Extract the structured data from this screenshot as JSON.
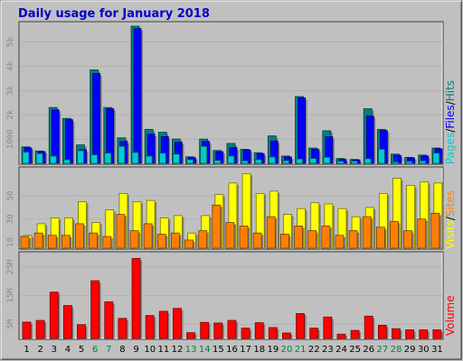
{
  "title": "Daily usage for January 2018",
  "colors": {
    "title": "#0000cc",
    "pages": "#00cccc",
    "files": "#0000ff",
    "hits": "#008080",
    "visits": "#ffff00",
    "sites": "#ff8000",
    "volume": "#ff0000",
    "weekend_label": "#008040",
    "weekday_label": "#000000",
    "panel_bg": "#c0c0c0"
  },
  "side_labels": {
    "pages": "Pages",
    "files": "Files",
    "hits": "Hits",
    "visits": "Visits",
    "sites": "Sites",
    "volume": "Volume",
    "separator": "/"
  },
  "chart_data": [
    {
      "type": "bar",
      "panel": "hits-files-pages",
      "categories": [
        "1",
        "2",
        "3",
        "4",
        "5",
        "6",
        "7",
        "8",
        "9",
        "10",
        "11",
        "12",
        "13",
        "14",
        "15",
        "16",
        "17",
        "18",
        "19",
        "20",
        "21",
        "22",
        "23",
        "24",
        "25",
        "26",
        "27",
        "28",
        "29",
        "30",
        "31"
      ],
      "weekend_days": [
        "6",
        "7",
        "13",
        "14",
        "20",
        "21",
        "27",
        "28"
      ],
      "series": [
        {
          "name": "Hits",
          "values": [
            680,
            510,
            2300,
            1850,
            760,
            3850,
            2300,
            1050,
            5650,
            1400,
            1280,
            1000,
            270,
            1000,
            530,
            820,
            580,
            440,
            1130,
            300,
            2750,
            630,
            1340,
            200,
            160,
            2250,
            1400,
            380,
            250,
            340,
            630
          ]
        },
        {
          "name": "Files",
          "values": [
            640,
            480,
            2200,
            1800,
            560,
            3700,
            2250,
            900,
            5550,
            1200,
            1100,
            870,
            230,
            900,
            480,
            650,
            550,
            400,
            920,
            260,
            2700,
            580,
            1100,
            160,
            140,
            1950,
            1350,
            330,
            220,
            300,
            600
          ]
        },
        {
          "name": "Pages",
          "values": [
            460,
            400,
            300,
            150,
            520,
            350,
            420,
            700,
            450,
            300,
            420,
            380,
            150,
            700,
            120,
            300,
            100,
            150,
            260,
            110,
            180,
            200,
            250,
            90,
            90,
            190,
            580,
            60,
            80,
            100,
            420
          ]
        }
      ],
      "yticks": [
        "1000",
        "2k",
        "3k",
        "4k",
        "5k"
      ],
      "ytick_values": [
        1000,
        2000,
        3000,
        4000,
        5000
      ],
      "ylim": [
        0,
        5800
      ]
    },
    {
      "type": "bar",
      "panel": "visits-sites",
      "categories": [
        "1",
        "2",
        "3",
        "4",
        "5",
        "6",
        "7",
        "8",
        "9",
        "10",
        "11",
        "12",
        "13",
        "14",
        "15",
        "16",
        "17",
        "18",
        "19",
        "20",
        "21",
        "22",
        "23",
        "24",
        "25",
        "26",
        "27",
        "28",
        "29",
        "30",
        "31"
      ],
      "series": [
        {
          "name": "Visits",
          "values": [
            16,
            26,
            31,
            31,
            45,
            27,
            38,
            52,
            45,
            46,
            31,
            33,
            18,
            33,
            51,
            61,
            69,
            52,
            54,
            34,
            39,
            44,
            43,
            39,
            32,
            40,
            52,
            65,
            59,
            62,
            61
          ]
        },
        {
          "name": "Sites",
          "values": [
            15,
            18,
            16,
            16,
            26,
            18,
            15,
            34,
            20,
            26,
            17,
            18,
            12,
            20,
            42,
            27,
            24,
            18,
            32,
            17,
            24,
            20,
            24,
            16,
            20,
            32,
            23,
            28,
            20,
            30,
            35
          ]
        }
      ],
      "yticks": [
        "10",
        "30",
        "50"
      ],
      "ytick_values": [
        10,
        30,
        50
      ],
      "ylim": [
        5,
        74
      ]
    },
    {
      "type": "bar",
      "panel": "volume",
      "categories": [
        "1",
        "2",
        "3",
        "4",
        "5",
        "6",
        "7",
        "8",
        "9",
        "10",
        "11",
        "12",
        "13",
        "14",
        "15",
        "16",
        "17",
        "18",
        "19",
        "20",
        "21",
        "22",
        "23",
        "24",
        "25",
        "26",
        "27",
        "28",
        "29",
        "30",
        "31"
      ],
      "series": [
        {
          "name": "Volume",
          "values": [
            5.7,
            6.3,
            16.2,
            11.5,
            4.8,
            20.2,
            12.8,
            7.0,
            28.0,
            8.0,
            9.5,
            10.5,
            2.0,
            5.6,
            5.4,
            6.3,
            3.6,
            5.5,
            3.8,
            1.9,
            8.7,
            3.6,
            7.5,
            1.5,
            2.8,
            7.8,
            4.6,
            3.4,
            3.0,
            3.0,
            3.0
          ]
        }
      ],
      "yticks": [
        "5M",
        "15M",
        "25M"
      ],
      "ytick_values": [
        5,
        15,
        25
      ],
      "ylim": [
        0,
        30
      ]
    }
  ]
}
